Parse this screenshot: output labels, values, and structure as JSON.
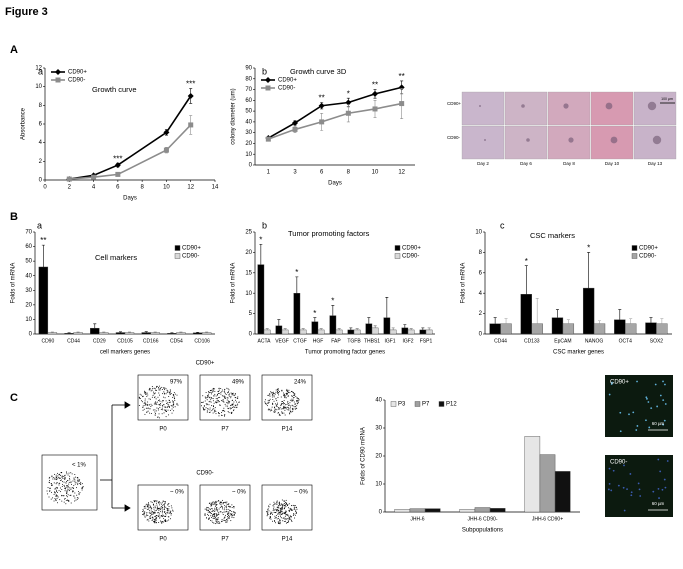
{
  "figure_title": "Figure 3",
  "panel_labels": [
    "A",
    "B",
    "C"
  ],
  "chart_data": [
    {
      "type": "line",
      "panel_label": "a",
      "title": "Growth curve",
      "xlabel": "Days",
      "ylabel": "Absorbance",
      "x": [
        2,
        4,
        6,
        10,
        12
      ],
      "xlim": [
        0,
        14
      ],
      "xticks": [
        0,
        2,
        4,
        6,
        8,
        10,
        12,
        14
      ],
      "ylim": [
        0,
        12
      ],
      "yticks": [
        0,
        2,
        4,
        6,
        8,
        10,
        12
      ],
      "legend": "upper left",
      "series": [
        {
          "name": "CD90+",
          "color": "#000000",
          "marker": "diamond",
          "values": [
            0.1,
            0.5,
            1.6,
            5.1,
            9.0
          ],
          "errors": [
            0.05,
            0.1,
            0.2,
            0.3,
            0.8
          ]
        },
        {
          "name": "CD90-",
          "color": "#8c8c8c",
          "marker": "square",
          "values": [
            0.1,
            0.3,
            0.6,
            3.2,
            5.9
          ],
          "errors": [
            0.05,
            0.1,
            0.1,
            0.3,
            1.0
          ]
        }
      ],
      "annotations": [
        {
          "text": "***",
          "x": 6
        },
        {
          "text": "***",
          "x": 12
        }
      ]
    },
    {
      "type": "line",
      "panel_label": "b",
      "title": "Growth curve 3D",
      "xlabel": "Days",
      "ylabel": "colony diameter (um)",
      "categories": [
        "1",
        "3",
        "6",
        "8",
        "10",
        "12"
      ],
      "ylim": [
        0,
        90
      ],
      "yticks": [
        0,
        10,
        20,
        30,
        40,
        50,
        60,
        70,
        80,
        90
      ],
      "legend": "upper left",
      "series": [
        {
          "name": "CD90+",
          "color": "#000000",
          "marker": "diamond",
          "values": [
            25,
            39,
            55,
            58,
            66,
            72
          ],
          "errors": [
            1,
            2,
            3,
            4,
            4,
            6
          ]
        },
        {
          "name": "CD90-",
          "color": "#8c8c8c",
          "marker": "square",
          "values": [
            24,
            33,
            40,
            48,
            52,
            57
          ],
          "errors": [
            1,
            3,
            8,
            8,
            8,
            14
          ]
        }
      ],
      "annotations": [
        {
          "text": "**",
          "x": "6"
        },
        {
          "text": "*",
          "x": "8"
        },
        {
          "text": "**",
          "x": "10"
        },
        {
          "text": "**",
          "x": "12"
        }
      ]
    },
    {
      "type": "bar",
      "panel_label": "a",
      "title": "Cell markers",
      "xlabel": "cell markers genes",
      "ylabel": "Folds of mRNA",
      "categories": [
        "CD90",
        "CD44",
        "CD29",
        "CD105",
        "CD166",
        "CD54",
        "CD106"
      ],
      "ylim": [
        0,
        70
      ],
      "yticks": [
        0,
        10,
        20,
        30,
        40,
        50,
        60,
        70
      ],
      "legend": "upper right",
      "series": [
        {
          "name": "CD90+",
          "color": "#000000",
          "values": [
            46,
            0.5,
            4,
            1,
            1,
            0.5,
            0.8
          ],
          "errors": [
            15,
            0.3,
            3,
            0.5,
            0.6,
            0.3,
            0.4
          ]
        },
        {
          "name": "CD90-",
          "color": "#d9d9d9",
          "values": [
            1,
            1,
            1,
            1,
            1,
            1,
            1
          ],
          "errors": [
            0.3,
            0.3,
            0.3,
            0.3,
            0.3,
            0.3,
            0.3
          ]
        }
      ],
      "annotations": [
        {
          "text": "**",
          "x": "CD90"
        }
      ]
    },
    {
      "type": "bar",
      "panel_label": "b",
      "title": "Tumor promoting factors",
      "xlabel": "Tumor promoting factor genes",
      "ylabel": "Folds of mRNA",
      "categories": [
        "ACTA",
        "VEGF",
        "CTGF",
        "HGF",
        "FAP",
        "TGFB",
        "THBS1",
        "IGF1",
        "IGF2",
        "FSP1"
      ],
      "ylim": [
        0,
        25
      ],
      "yticks": [
        0,
        5,
        10,
        15,
        20,
        25
      ],
      "legend": "upper right",
      "series": [
        {
          "name": "CD90+",
          "color": "#000000",
          "values": [
            17,
            2,
            10,
            3,
            4.5,
            1,
            2.5,
            4,
            1.5,
            1
          ],
          "errors": [
            5,
            1.5,
            4,
            1,
            2.5,
            0.5,
            1.5,
            5,
            0.8,
            0.5
          ]
        },
        {
          "name": "CD90-",
          "color": "#d9d9d9",
          "values": [
            1,
            1,
            1,
            1,
            1,
            1,
            1.5,
            1,
            1,
            1
          ],
          "errors": [
            0.3,
            0.3,
            0.3,
            0.3,
            0.3,
            0.3,
            0.5,
            0.5,
            0.3,
            0.5
          ]
        }
      ],
      "annotations": [
        {
          "text": "*",
          "x": "ACTA"
        },
        {
          "text": "*",
          "x": "CTGF"
        },
        {
          "text": "*",
          "x": "HGF"
        },
        {
          "text": "*",
          "x": "FAP"
        }
      ]
    },
    {
      "type": "bar",
      "panel_label": "c",
      "title": "CSC markers",
      "xlabel": "CSC marker genes",
      "ylabel": "Folds of mRNA",
      "categories": [
        "CD44",
        "CD133",
        "EpCAM",
        "NANOG",
        "OCT4",
        "SOX2"
      ],
      "ylim": [
        0,
        10
      ],
      "yticks": [
        0,
        2,
        4,
        6,
        8,
        10
      ],
      "legend": "upper right",
      "series": [
        {
          "name": "CD90+",
          "color": "#000000",
          "values": [
            1,
            3.9,
            1.6,
            4.5,
            1.4,
            1.1
          ],
          "errors": [
            0.6,
            2.8,
            0.8,
            3.5,
            1,
            0.5
          ]
        },
        {
          "name": "CD90-",
          "color": "#a6a6a6",
          "values": [
            1,
            1,
            1,
            1,
            1,
            1
          ],
          "errors": [
            0.5,
            2.5,
            0.4,
            0.3,
            0.5,
            0.5
          ]
        }
      ],
      "annotations": [
        {
          "text": "*",
          "x": "CD133"
        },
        {
          "text": "*",
          "x": "NANOG"
        }
      ]
    },
    {
      "type": "bar",
      "xlabel": "Subpopulations",
      "ylabel": "Folds of CD90 mRNA",
      "categories": [
        "JHH-6",
        "JHH-6 CD90-",
        "JHH-6 CD90+"
      ],
      "ylim": [
        0,
        40
      ],
      "yticks": [
        0,
        10,
        20,
        30,
        40
      ],
      "legend": "upper left",
      "series": [
        {
          "name": "P3",
          "color": "#e6e6e6",
          "values": [
            1,
            1,
            27
          ]
        },
        {
          "name": "P7",
          "color": "#a0a0a0",
          "values": [
            1.2,
            1.6,
            20.5
          ]
        },
        {
          "name": "P12",
          "color": "#111111",
          "values": [
            1.2,
            1.3,
            14.5
          ]
        }
      ]
    }
  ],
  "microscopy": {
    "row_labels": [
      "CD90+",
      "CD90-"
    ],
    "day_labels": [
      "Day 2",
      "Day 6",
      "Day 8",
      "Day 10",
      "Day 13"
    ],
    "scale_bar": "100 µm"
  },
  "flow_cytometry": {
    "parent_gate": "< 1%",
    "groups": [
      {
        "title": "CD90+",
        "gates": [
          "97%",
          "49%",
          "24%"
        ],
        "passages": [
          "P0",
          "P7",
          "P14"
        ]
      },
      {
        "title": "CD90-",
        "gates": [
          "~ 0%",
          "~ 0%",
          "~ 0%"
        ],
        "passages": [
          "P0",
          "P7",
          "P14"
        ]
      }
    ]
  },
  "fluorescence": {
    "labels": [
      "CD90+",
      "CD90-"
    ],
    "scale_bars": [
      "60 µm",
      "60 µm"
    ]
  }
}
